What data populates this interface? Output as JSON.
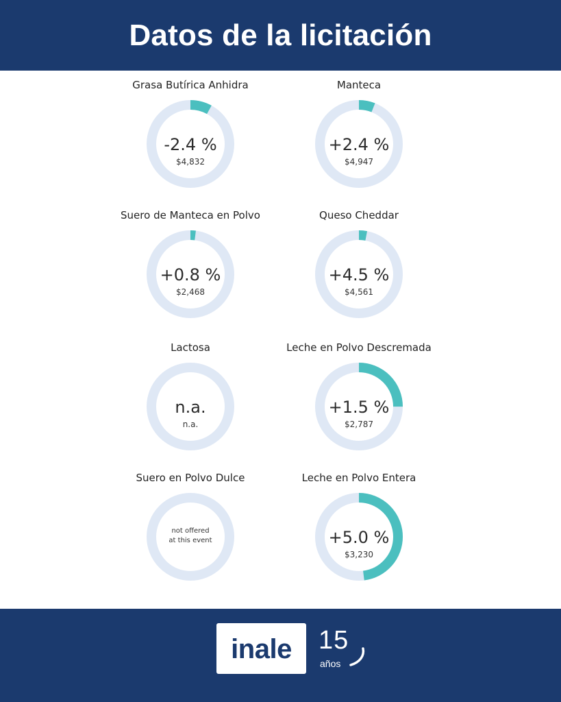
{
  "header": {
    "title": "Datos de la licitación"
  },
  "footer": {
    "logo": "inale",
    "anniversary_number": "15",
    "anniversary_word": "años"
  },
  "colors": {
    "header_bg": "#1b3a6e",
    "ring_track": "#dfe8f5",
    "ring_fill": "#4bbfbf"
  },
  "chart_data": {
    "type": "donut",
    "title": "Datos de la licitación",
    "items": [
      {
        "label": "Grasa Butírica Anhidra",
        "change": "-2.4 %",
        "price": "$4,832",
        "ring_fraction": 0.08
      },
      {
        "label": "Manteca",
        "change": "+2.4 %",
        "price": "$4,947",
        "ring_fraction": 0.06
      },
      {
        "label": "Suero de Manteca en Polvo",
        "change": "+0.8 %",
        "price": "$2,468",
        "ring_fraction": 0.02
      },
      {
        "label": "Queso Cheddar",
        "change": "+4.5 %",
        "price": "$4,561",
        "ring_fraction": 0.03
      },
      {
        "label": "Lactosa",
        "change": "n.a.",
        "price": "n.a.",
        "ring_fraction": 0
      },
      {
        "label": "Leche en Polvo Descremada",
        "change": "+1.5 %",
        "price": "$2,787",
        "ring_fraction": 0.25
      },
      {
        "label": "Suero en Polvo Dulce",
        "change": "",
        "price": "",
        "note_line1": "not offered",
        "note_line2": "at this event",
        "ring_fraction": 0
      },
      {
        "label": "Leche en Polvo Entera",
        "change": "+5.0 %",
        "price": "$3,230",
        "ring_fraction": 0.48
      }
    ]
  }
}
